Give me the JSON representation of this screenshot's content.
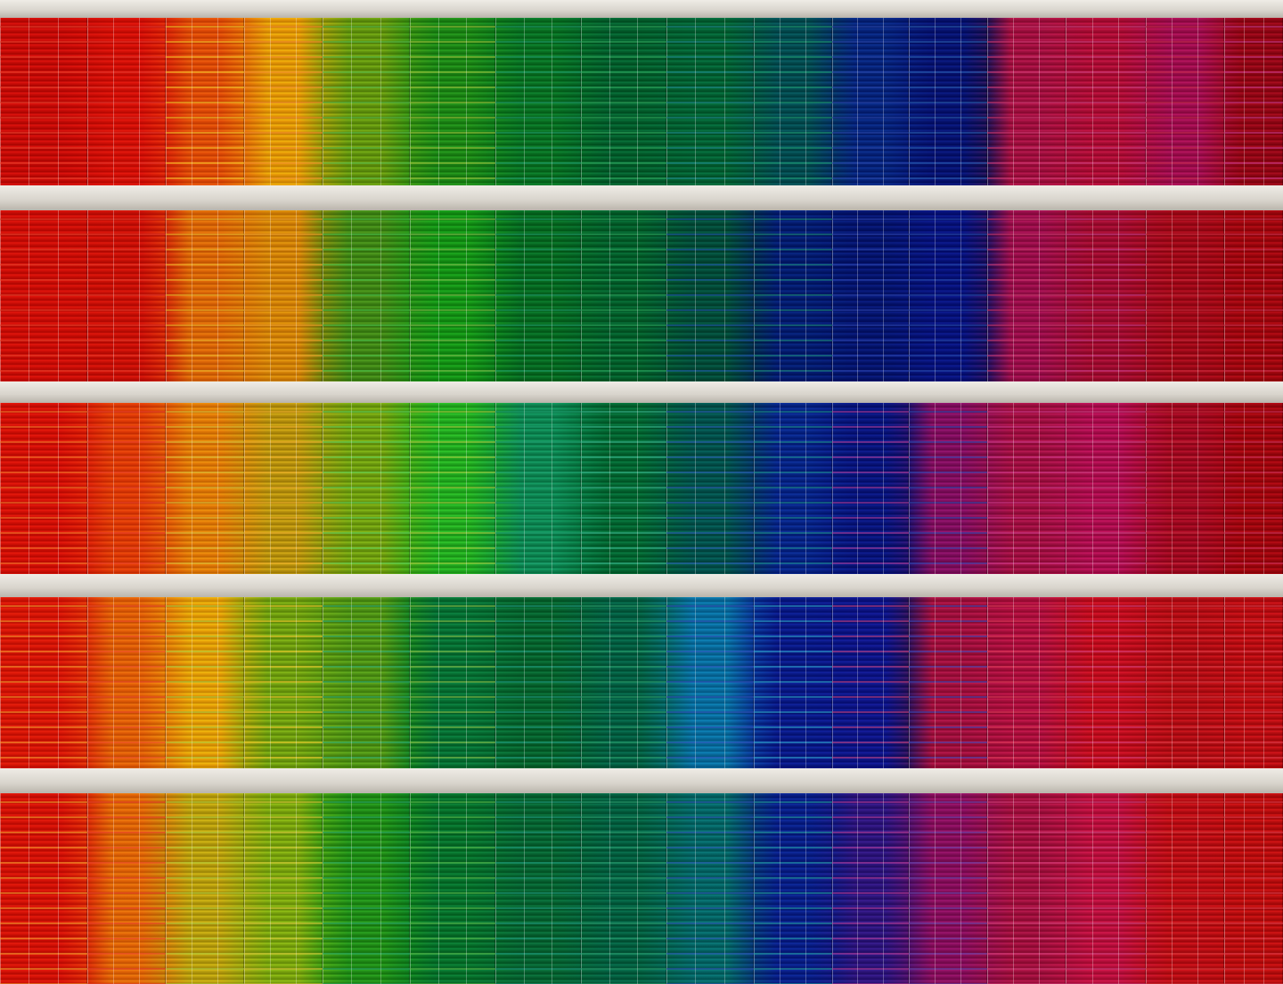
{
  "palette": {
    "beam": "#dcd8d1",
    "rows": [
      [
        "#e0352b",
        "#e8402c",
        "#ef8a2c",
        "#f2c42a",
        "#9ec23c",
        "#55b84a",
        "#2fa85e",
        "#1f9a6a",
        "#1e9c72",
        "#1f8a8e",
        "#2a5fb0",
        "#2845a8",
        "#c9407e",
        "#d03a74",
        "#c83a8c",
        "#c02a4a"
      ],
      [
        "#e43a2a",
        "#e2402a",
        "#eda12c",
        "#e8b52c",
        "#7fb84a",
        "#48c04a",
        "#2aa35c",
        "#1f9a68",
        "#1c8a78",
        "#2055a8",
        "#2548a6",
        "#2b44b0",
        "#c43c88",
        "#c8386e",
        "#c8304e",
        "#c82a3c"
      ],
      [
        "#e8402a",
        "#ef7a2a",
        "#f0b02c",
        "#d8c03a",
        "#a8c83e",
        "#5ed05a",
        "#3ab890",
        "#1fa070",
        "#1c8f8a",
        "#2c60b8",
        "#2e48b0",
        "#b43c9a",
        "#c84080",
        "#d03a8c",
        "#c8305a",
        "#c8283c"
      ],
      [
        "#ea4a2a",
        "#f09a2c",
        "#f2c82c",
        "#a8c83e",
        "#8cc048",
        "#2aa872",
        "#2a9e6c",
        "#1f9a80",
        "#2ea6c8",
        "#3050b8",
        "#3a48b8",
        "#c8407c",
        "#d0407c",
        "#dc3a58",
        "#d43a48",
        "#d83a44"
      ],
      [
        "#e8422a",
        "#f0a02c",
        "#d8c83a",
        "#b0cc3c",
        "#5abc4c",
        "#2aa868",
        "#2a9e70",
        "#1f9a7e",
        "#24a0a0",
        "#2e58b8",
        "#6a48b0",
        "#b83c98",
        "#c8407c",
        "#d8407c",
        "#d83a48",
        "#d83a3c"
      ]
    ]
  }
}
